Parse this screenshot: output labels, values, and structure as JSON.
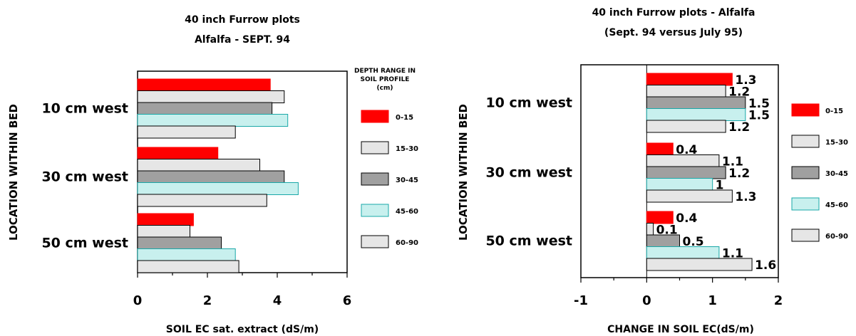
{
  "chart_data": [
    {
      "type": "bar",
      "orientation": "horizontal",
      "title": "40 inch Furrow plots",
      "subtitle": "Alfalfa - SEPT. 94",
      "xlabel": "SOIL EC sat. extract (dS/m)",
      "ylabel": "LOCATION WITHIN BED",
      "xlim": [
        0,
        6
      ],
      "xticks": [
        "0",
        "2",
        "4",
        "6"
      ],
      "categories": [
        "10 cm west",
        "30 cm west",
        "50 cm west"
      ],
      "legend_title": [
        "DEPTH RANGE IN",
        "SOIL PROFILE",
        "(cm)"
      ],
      "legend_position": "right",
      "series": [
        {
          "name": "0-15",
          "color": "#ff0000",
          "values": [
            3.8,
            2.3,
            1.6
          ]
        },
        {
          "name": "15-30",
          "color": "#e6e6e6",
          "values": [
            4.2,
            3.5,
            1.5
          ]
        },
        {
          "name": "30-45",
          "color": "#a0a0a0",
          "values": [
            3.85,
            4.2,
            2.4
          ]
        },
        {
          "name": "45-60",
          "color": "#c8f0ee",
          "values": [
            4.3,
            4.6,
            2.8
          ]
        },
        {
          "name": "60-90",
          "color": "#e6e6e6",
          "values": [
            2.8,
            3.7,
            2.9
          ]
        }
      ]
    },
    {
      "type": "bar",
      "orientation": "horizontal",
      "title": "40 inch Furrow plots - Alfalfa",
      "subtitle": "(Sept. 94 versus July 95)",
      "xlabel": "CHANGE IN SOIL EC(dS/m)",
      "ylabel": "LOCATION WITHIN BED",
      "xlim": [
        -1,
        2
      ],
      "xticks": [
        "-1",
        "0",
        "1",
        "2"
      ],
      "categories": [
        "10 cm west",
        "30 cm west",
        "50 cm west"
      ],
      "legend_position": "right",
      "series": [
        {
          "name": "0-15",
          "color": "#ff0000",
          "values": [
            1.3,
            0.4,
            0.4
          ],
          "labels": [
            "1.3",
            "0.4",
            "0.4"
          ]
        },
        {
          "name": "15-30",
          "color": "#e6e6e6",
          "values": [
            1.2,
            1.1,
            0.1
          ],
          "labels": [
            "1.2",
            "1.1",
            "0.1"
          ]
        },
        {
          "name": "30-45",
          "color": "#a0a0a0",
          "values": [
            1.5,
            1.2,
            0.5
          ],
          "labels": [
            "1.5",
            "1.2",
            "0.5"
          ]
        },
        {
          "name": "45-60",
          "color": "#c8f0ee",
          "values": [
            1.5,
            1.0,
            1.1
          ],
          "labels": [
            "1.5",
            "1",
            "1.1"
          ]
        },
        {
          "name": "60-90",
          "color": "#e6e6e6",
          "values": [
            1.2,
            1.3,
            1.6
          ],
          "labels": [
            "1.2",
            "1.3",
            "1.6"
          ]
        }
      ]
    }
  ]
}
